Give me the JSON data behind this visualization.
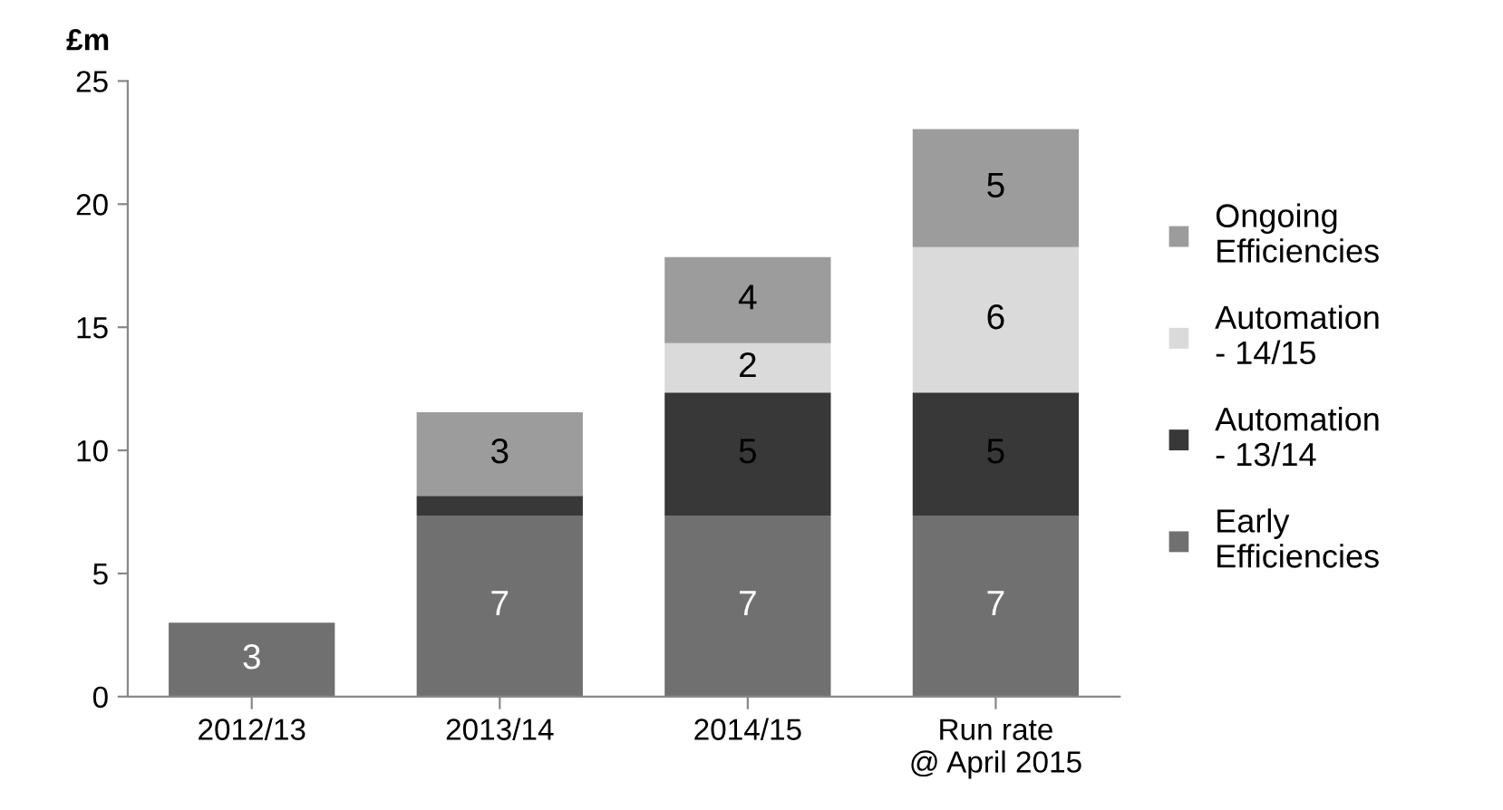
{
  "chart_data": {
    "type": "bar",
    "stacked": true,
    "ylabel": "£m",
    "categories": [
      "2012/13",
      "2013/14",
      "2014/15",
      "Run rate\n@ April 2015"
    ],
    "series": [
      {
        "name": "Early\nEfficiencies",
        "color": "#707070",
        "values": [
          3.0,
          7.35,
          7.35,
          7.35
        ],
        "value_labels": [
          "3",
          "7",
          "7",
          "7"
        ]
      },
      {
        "name": "Automation\n- 13/14",
        "color": "#383838",
        "values": [
          null,
          0.8,
          5.0,
          5.0
        ],
        "value_labels": [
          null,
          null,
          "5",
          "5"
        ]
      },
      {
        "name": "Automation\n- 14/15",
        "color": "#dadada",
        "values": [
          null,
          null,
          2.0,
          5.9
        ],
        "value_labels": [
          null,
          null,
          "2",
          "6"
        ]
      },
      {
        "name": "Ongoing\nEfficiencies",
        "color": "#9c9c9c",
        "values": [
          null,
          3.4,
          3.5,
          4.8
        ],
        "value_labels": [
          null,
          "3",
          "4",
          "5"
        ]
      }
    ],
    "ylim": [
      0,
      25
    ],
    "yticks": [
      0,
      5,
      10,
      15,
      20,
      25
    ],
    "grid": false,
    "legend": "right"
  }
}
